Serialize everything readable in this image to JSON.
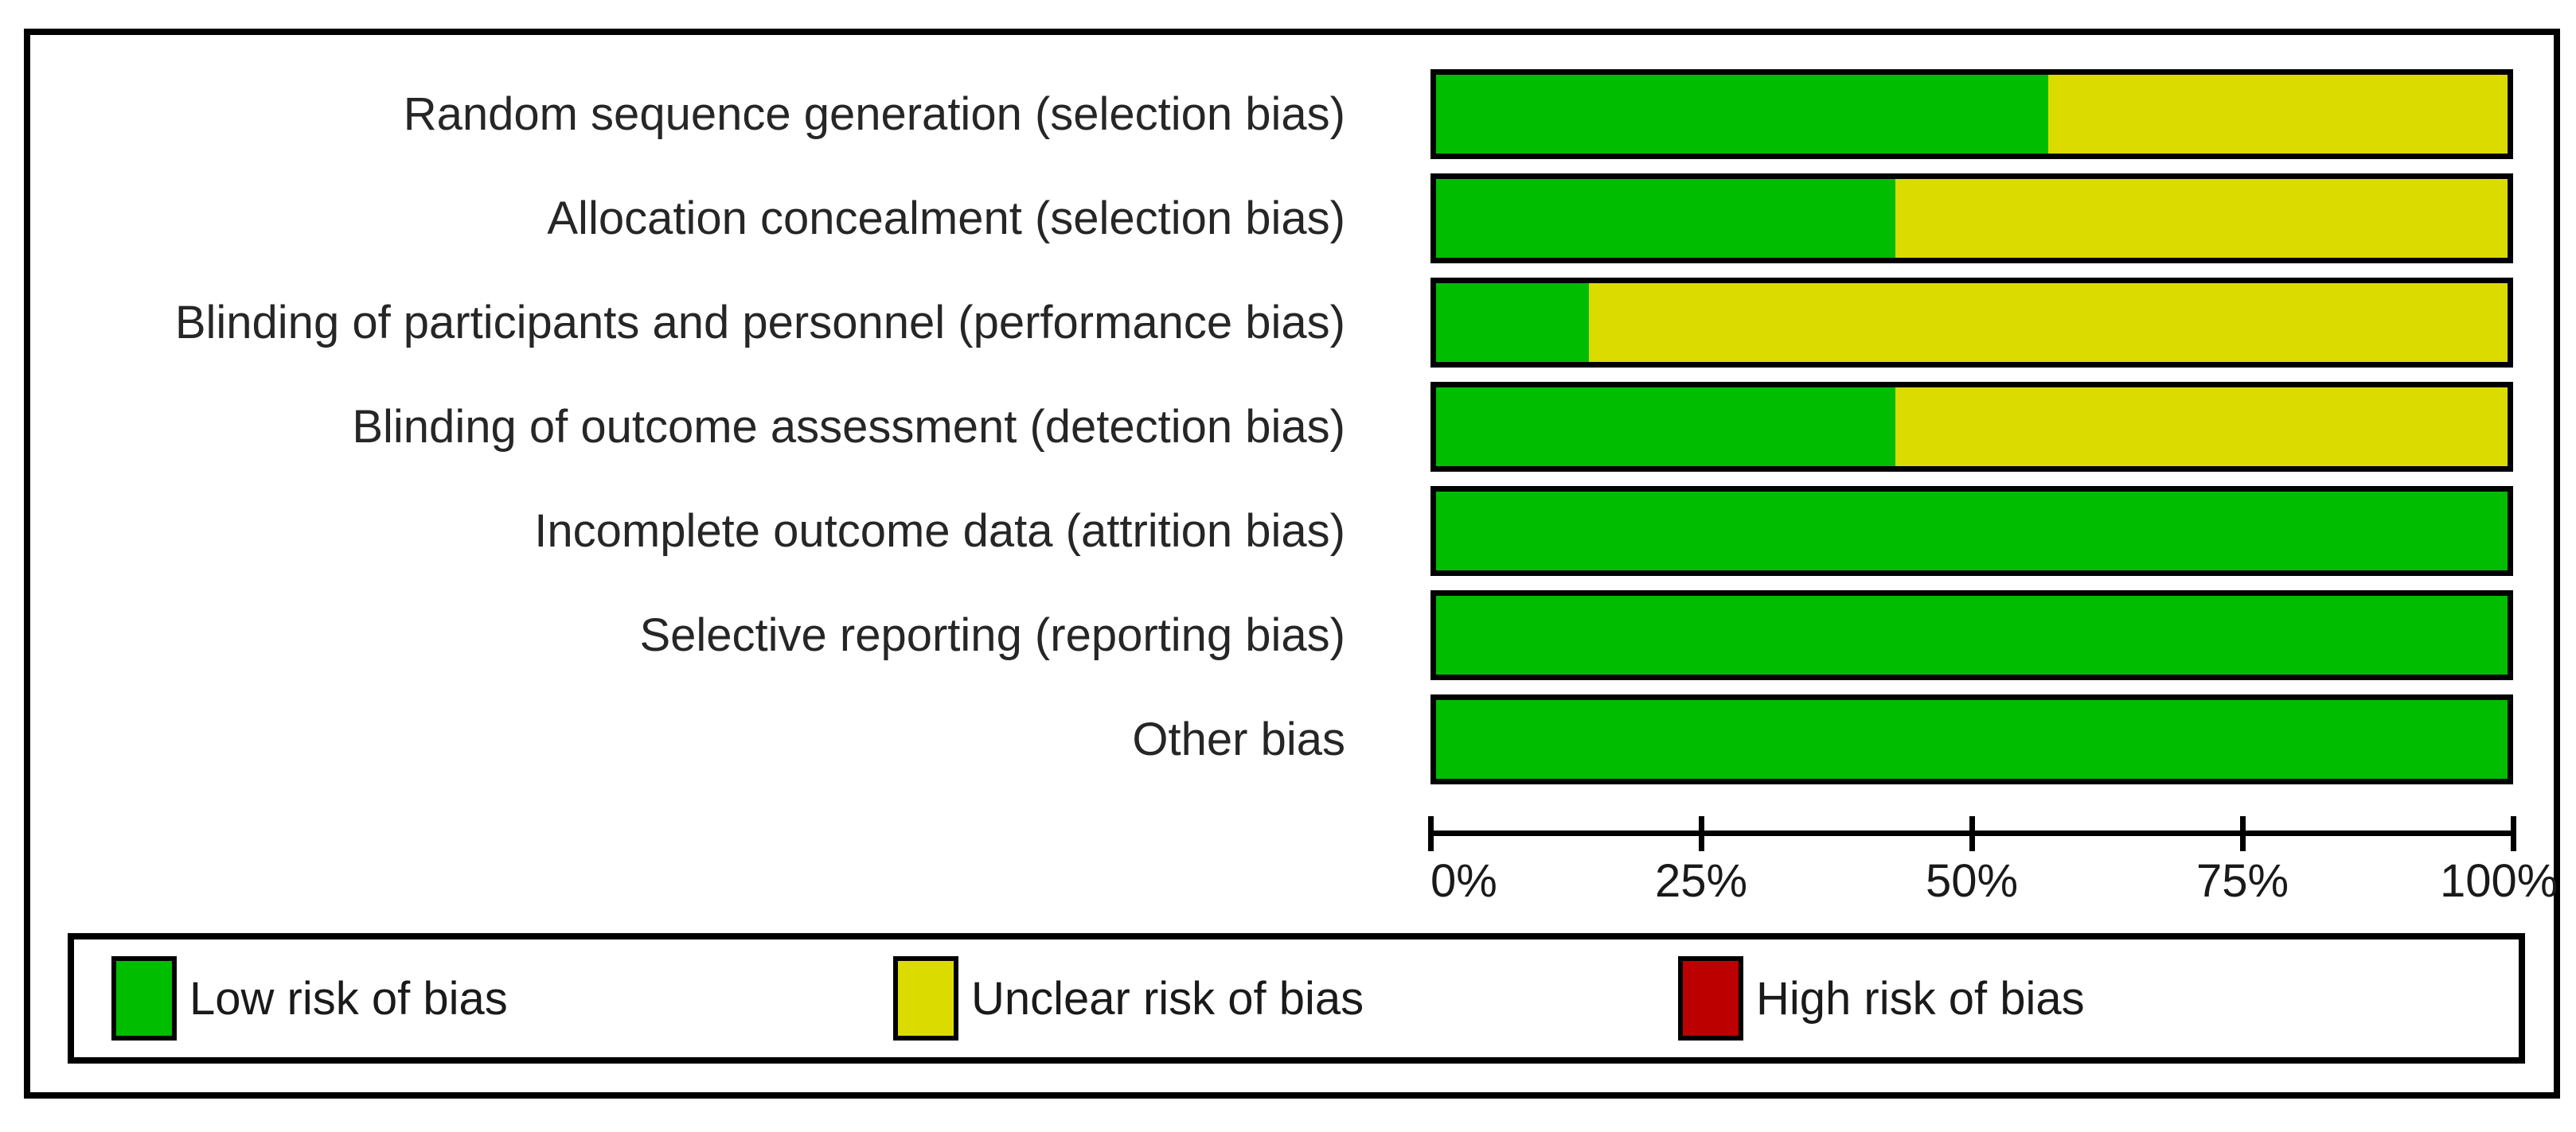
{
  "chart_data": {
    "type": "bar",
    "orientation": "horizontal",
    "stacked": true,
    "title": "",
    "xlabel": "",
    "ylabel": "",
    "xlim": [
      0,
      100
    ],
    "grid": false,
    "legend_position": "bottom",
    "categories": [
      "Random sequence generation (selection bias)",
      "Allocation concealment (selection bias)",
      "Blinding of participants and personnel (performance bias)",
      "Blinding of outcome assessment (detection bias)",
      "Incomplete outcome data (attrition bias)",
      "Selective reporting (reporting bias)",
      "Other bias"
    ],
    "series": [
      {
        "name": "Low risk of bias",
        "color": "#00bd00",
        "values": [
          57.1,
          42.9,
          14.3,
          42.9,
          100,
          100,
          100
        ]
      },
      {
        "name": "Unclear risk of bias",
        "color": "#dbdb00",
        "values": [
          42.9,
          57.1,
          85.7,
          57.1,
          0,
          0,
          0
        ]
      },
      {
        "name": "High risk of bias",
        "color": "#bc0000",
        "values": [
          0,
          0,
          0,
          0,
          0,
          0,
          0
        ]
      }
    ],
    "x_ticks": [
      "0%",
      "25%",
      "50%",
      "75%",
      "100%"
    ]
  },
  "legend": {
    "items": [
      {
        "label": "Low risk of bias",
        "color": "#00bd00"
      },
      {
        "label": "Unclear risk of bias",
        "color": "#dbdb00"
      },
      {
        "label": "High risk of bias",
        "color": "#bc0000"
      }
    ]
  },
  "colors": {
    "low_risk": "#00bd00",
    "unclear_risk": "#dbdb00",
    "high_risk": "#bc0000",
    "border": "#000000",
    "background": "#ffffff"
  }
}
